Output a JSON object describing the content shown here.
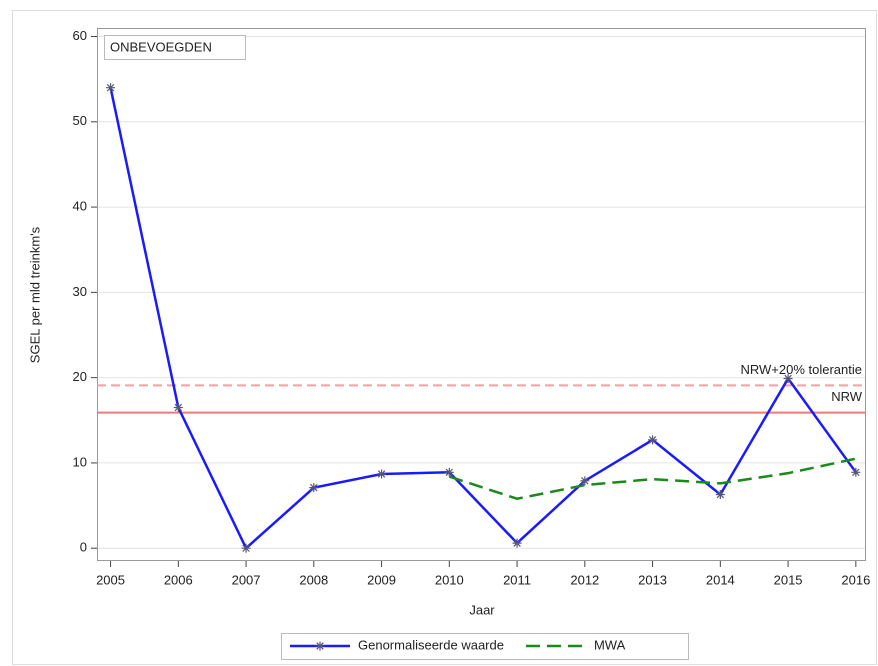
{
  "chart_data": {
    "type": "line",
    "x_label": "Jaar",
    "y_label": "SGEL per mld treinkm's",
    "inset_label": "ONBEVOEGDEN",
    "x": [
      2005,
      2006,
      2007,
      2008,
      2009,
      2010,
      2011,
      2012,
      2013,
      2014,
      2015,
      2016
    ],
    "series": [
      {
        "name": "Genormaliseerde waarde",
        "color": "#1a1aff",
        "marker": "asterisk",
        "dash": "solid",
        "values": [
          54,
          16.5,
          0,
          7.1,
          8.7,
          8.9,
          0.6,
          7.9,
          12.7,
          6.3,
          19.9,
          8.9
        ]
      },
      {
        "name": "MWA",
        "color": "#1a8a1a",
        "marker": "none",
        "dash": "dashed",
        "values": [
          null,
          null,
          null,
          null,
          null,
          8.4,
          5.8,
          7.4,
          8.1,
          7.6,
          8.8,
          10.5
        ]
      }
    ],
    "reference_lines": [
      {
        "label": "NRW+20% tolerantie",
        "value": 19.1,
        "color": "#f4a0a0",
        "dash": "dashed"
      },
      {
        "label": "NRW",
        "value": 15.9,
        "color": "#f07878",
        "dash": "solid"
      }
    ],
    "xlim": [
      2004.8,
      2016.15
    ],
    "xticks": [
      2005,
      2006,
      2007,
      2008,
      2009,
      2010,
      2011,
      2012,
      2013,
      2014,
      2015,
      2016
    ],
    "ylim": [
      -1.5,
      61
    ],
    "yticks": [
      0,
      10,
      20,
      30,
      40,
      50,
      60
    ],
    "grid": true,
    "legend": "bottom"
  }
}
